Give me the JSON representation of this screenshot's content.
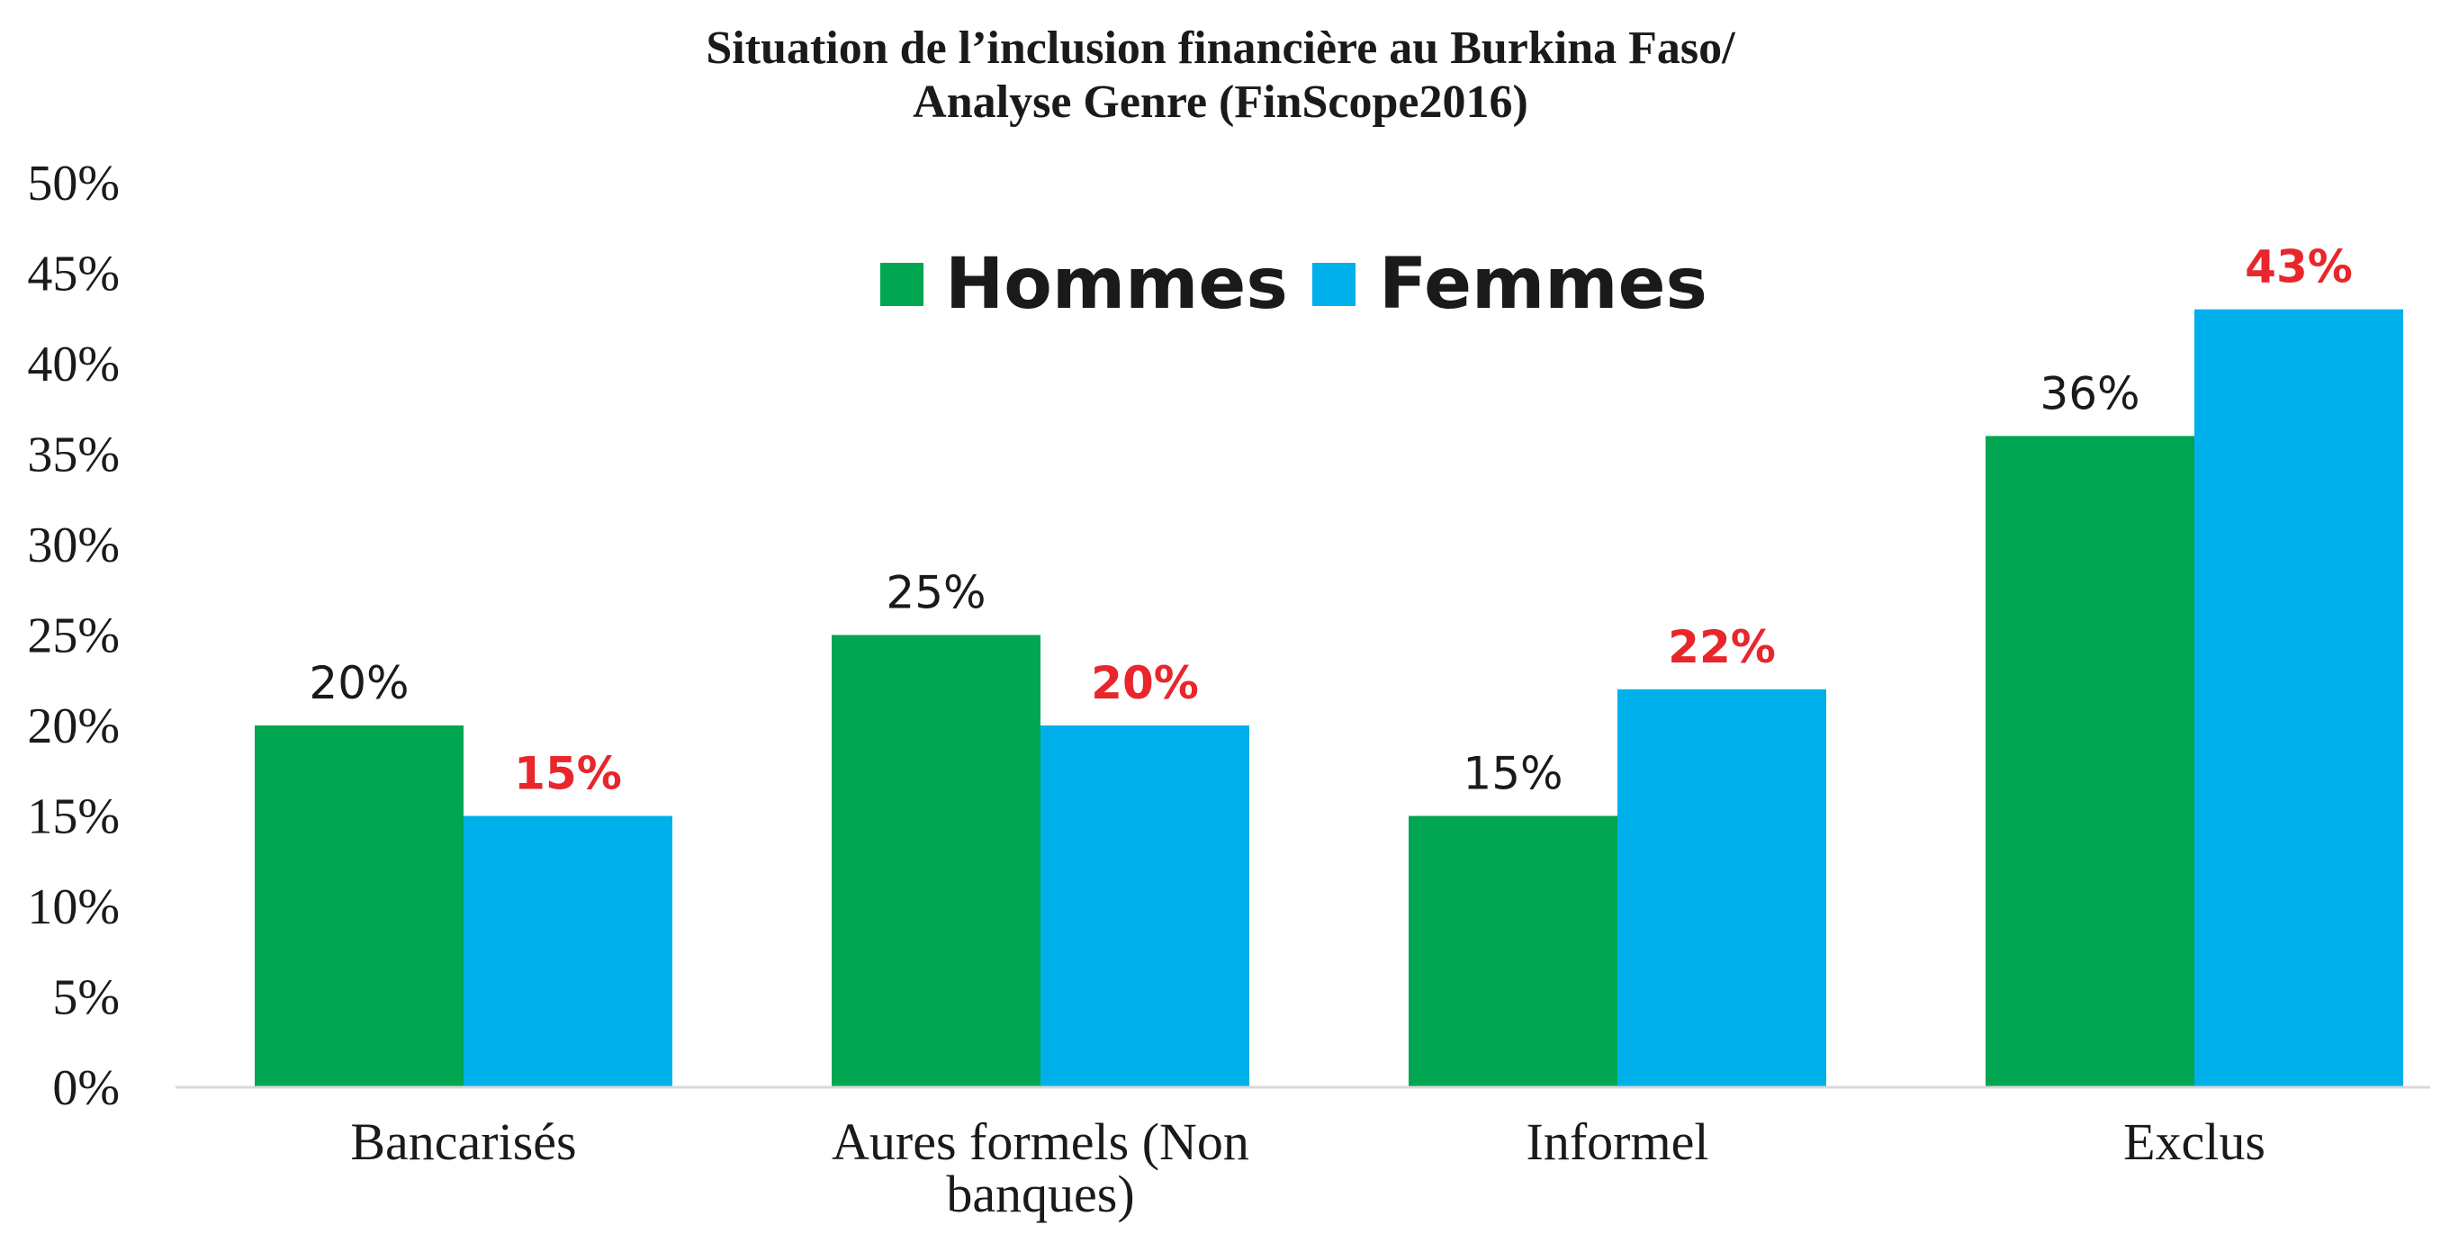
{
  "chart_data": {
    "type": "bar",
    "title_lines": [
      "Situation de l’inclusion financière au Burkina Faso/",
      "Analyse Genre (FinScope2016)"
    ],
    "categories": [
      "Bancarisés",
      "Aures formels (Non banques)",
      "Informel",
      "Exclus"
    ],
    "category_lines": [
      [
        "Bancarisés"
      ],
      [
        "Aures formels (Non",
        "banques)"
      ],
      [
        "Informel"
      ],
      [
        "Exclus"
      ]
    ],
    "series": [
      {
        "name": "Hommes",
        "values": [
          20,
          25,
          15,
          36
        ],
        "labels": [
          "20%",
          "25%",
          "15%",
          "36%"
        ],
        "color": "#00a651"
      },
      {
        "name": "Femmes",
        "values": [
          15,
          20,
          22,
          43
        ],
        "labels": [
          "15%",
          "20%",
          "22%",
          "43%"
        ],
        "color": "#00b0eb"
      }
    ],
    "women_label_color": "#e8262c",
    "ylim": [
      0,
      50
    ],
    "yticks": [
      0,
      5,
      10,
      15,
      20,
      25,
      30,
      35,
      40,
      45,
      50
    ],
    "ytick_labels": [
      "0%",
      "5%",
      "10%",
      "15%",
      "20%",
      "25%",
      "30%",
      "35%",
      "40%",
      "45%",
      "50%"
    ],
    "legend_position": "top-center",
    "grid": false,
    "xlabel": "",
    "ylabel": ""
  }
}
